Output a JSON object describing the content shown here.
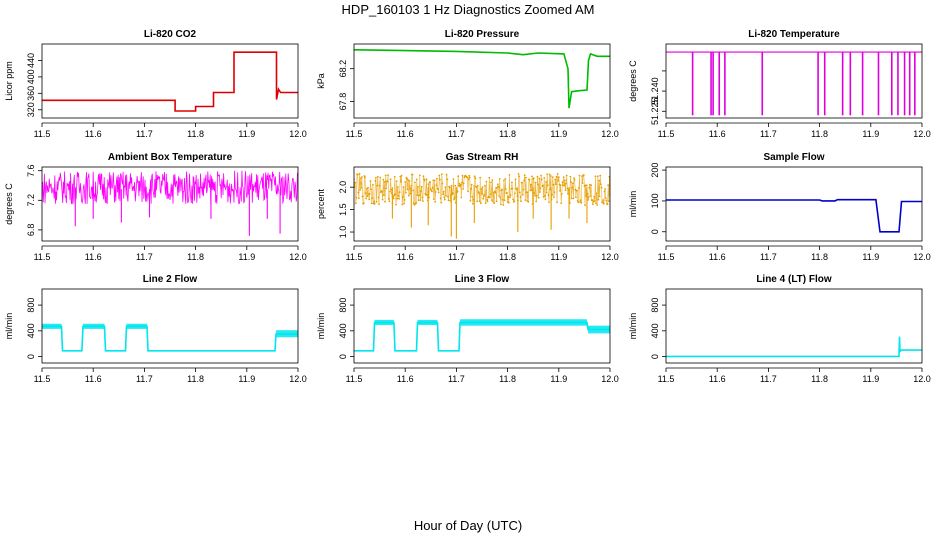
{
  "figure": {
    "title": "HDP_160103  1 Hz Diagnostics Zoomed AM",
    "xlabel": "Hour of Day (UTC)"
  },
  "chart_data": [
    {
      "type": "line",
      "title": "Li-820 CO2",
      "ylabel": "Licor ppm",
      "color": "#dd0000",
      "xlim": [
        11.5,
        12.0
      ],
      "ylim": [
        300,
        480
      ],
      "yticks": [
        320,
        360,
        400,
        440
      ],
      "ytick_labels": [
        "320",
        "360",
        "400",
        "440"
      ],
      "xticks": [
        11.5,
        11.6,
        11.7,
        11.8,
        11.9,
        12.0
      ],
      "xtick_labels": [
        "11.5",
        "11.6",
        "11.7",
        "11.8",
        "11.9",
        "12.0"
      ],
      "x": [
        11.5,
        11.76,
        11.76,
        11.8,
        11.8,
        11.835,
        11.835,
        11.875,
        11.875,
        11.958,
        11.958,
        11.962,
        11.966,
        12.0
      ],
      "y": [
        343,
        343,
        317,
        317,
        328,
        328,
        362,
        362,
        460,
        460,
        345,
        370,
        362,
        362
      ]
    },
    {
      "type": "line",
      "title": "Li-820 Pressure",
      "ylabel": "kPa",
      "color": "#00bb00",
      "xlim": [
        11.5,
        12.0
      ],
      "ylim": [
        67.6,
        68.5
      ],
      "yticks": [
        67.8,
        68.2
      ],
      "ytick_labels": [
        "67.8",
        "68.2"
      ],
      "xticks": [
        11.5,
        11.6,
        11.7,
        11.8,
        11.9,
        12.0
      ],
      "xtick_labels": [
        "11.5",
        "11.6",
        "11.7",
        "11.8",
        "11.9",
        "12.0"
      ],
      "x": [
        11.5,
        11.6,
        11.7,
        11.8,
        11.83,
        11.86,
        11.91,
        11.918,
        11.92,
        11.925,
        11.935,
        11.955,
        11.958,
        11.962,
        11.975,
        12.0
      ],
      "y": [
        68.43,
        68.42,
        68.41,
        68.39,
        68.37,
        68.39,
        68.38,
        68.2,
        67.72,
        67.92,
        67.93,
        67.94,
        68.3,
        68.38,
        68.35,
        68.35
      ]
    },
    {
      "type": "line",
      "title": "Li-820 Temperature",
      "ylabel": "degrees C",
      "color": "#dd00dd",
      "xlim": [
        11.5,
        12.0
      ],
      "ylim": [
        51.22,
        51.275
      ],
      "yticks": [
        51.225,
        51.24,
        51.255
      ],
      "ytick_labels": [
        "51.225",
        "51.240",
        ""
      ],
      "xticks": [
        11.5,
        11.6,
        11.7,
        11.8,
        11.9,
        12.0
      ],
      "xtick_labels": [
        "11.5",
        "11.6",
        "11.7",
        "11.8",
        "11.9",
        "12.0"
      ],
      "baseline": 51.269,
      "dips": [
        11.552,
        11.588,
        11.592,
        11.604,
        11.615,
        11.688,
        11.797,
        11.81,
        11.845,
        11.86,
        11.884,
        11.915,
        11.941,
        11.953,
        11.966,
        11.976,
        11.986
      ],
      "dip_value": 51.222
    },
    {
      "type": "line",
      "title": "Ambient Box Temperature",
      "ylabel": "degrees C",
      "color": "#ff00ff",
      "xlim": [
        11.5,
        12.0
      ],
      "ylim": [
        6.65,
        7.65
      ],
      "yticks": [
        6.8,
        7.2,
        7.6
      ],
      "ytick_labels": [
        "6.8",
        "7.2",
        "7.6"
      ],
      "xticks": [
        11.5,
        11.6,
        11.7,
        11.8,
        11.9,
        12.0
      ],
      "xtick_labels": [
        "11.5",
        "11.6",
        "11.7",
        "11.8",
        "11.9",
        "12.0"
      ],
      "noise_center": 7.35,
      "noise_min": 7.15,
      "noise_max": 7.6,
      "spikes": [
        {
          "x": 11.565,
          "y": 6.85
        },
        {
          "x": 11.6,
          "y": 6.95
        },
        {
          "x": 11.655,
          "y": 6.9
        },
        {
          "x": 11.71,
          "y": 6.97
        },
        {
          "x": 11.83,
          "y": 6.95
        },
        {
          "x": 11.905,
          "y": 6.72
        },
        {
          "x": 11.965,
          "y": 6.75
        },
        {
          "x": 11.94,
          "y": 6.95
        }
      ]
    },
    {
      "type": "scatter",
      "title": "Gas Stream RH",
      "ylabel": "percent",
      "color": "#e69f00",
      "xlim": [
        11.5,
        12.0
      ],
      "ylim": [
        0.8,
        2.45
      ],
      "yticks": [
        1.0,
        1.5,
        2.0
      ],
      "ytick_labels": [
        "1.0",
        "1.5",
        "2.0"
      ],
      "xticks": [
        11.5,
        11.6,
        11.7,
        11.8,
        11.9,
        12.0
      ],
      "xtick_labels": [
        "11.5",
        "11.6",
        "11.7",
        "11.8",
        "11.9",
        "12.0"
      ],
      "noise_center": 2.0,
      "noise_min": 1.6,
      "noise_max": 2.3,
      "spikes": [
        {
          "x": 11.575,
          "y": 1.3
        },
        {
          "x": 11.612,
          "y": 1.1
        },
        {
          "x": 11.645,
          "y": 1.15
        },
        {
          "x": 11.69,
          "y": 0.9
        },
        {
          "x": 11.7,
          "y": 0.85
        },
        {
          "x": 11.735,
          "y": 1.2
        },
        {
          "x": 11.82,
          "y": 1.0
        },
        {
          "x": 11.85,
          "y": 1.3
        },
        {
          "x": 11.885,
          "y": 1.05
        },
        {
          "x": 11.92,
          "y": 1.3
        },
        {
          "x": 11.955,
          "y": 1.2
        }
      ]
    },
    {
      "type": "line",
      "title": "Sample Flow",
      "ylabel": "ml/min",
      "color": "#0000cc",
      "xlim": [
        11.5,
        12.0
      ],
      "ylim": [
        -30,
        210
      ],
      "yticks": [
        0,
        100,
        200
      ],
      "ytick_labels": [
        "0",
        "100",
        "200"
      ],
      "xticks": [
        11.5,
        11.6,
        11.7,
        11.8,
        11.9,
        12.0
      ],
      "xtick_labels": [
        "11.5",
        "11.6",
        "11.7",
        "11.8",
        "11.9",
        "12.0"
      ],
      "x": [
        11.5,
        11.8,
        11.805,
        11.83,
        11.835,
        11.91,
        11.918,
        11.955,
        11.96,
        12.0
      ],
      "y": [
        103,
        103,
        100,
        100,
        104,
        104,
        0,
        0,
        98,
        98
      ]
    },
    {
      "type": "line",
      "title": "Line 2 Flow",
      "ylabel": "ml/min",
      "color": "#00e5ee",
      "xlim": [
        11.5,
        12.0
      ],
      "ylim": [
        -100,
        1050
      ],
      "yticks": [
        0,
        400,
        800
      ],
      "ytick_labels": [
        "0",
        "400",
        "800"
      ],
      "xticks": [
        11.5,
        11.6,
        11.7,
        11.8,
        11.9,
        12.0
      ],
      "xtick_labels": [
        "11.5",
        "11.6",
        "11.7",
        "11.8",
        "11.9",
        "12.0"
      ],
      "x": [
        11.5,
        11.538,
        11.54,
        11.578,
        11.58,
        11.622,
        11.624,
        11.663,
        11.665,
        11.705,
        11.707,
        11.955,
        11.957,
        12.0
      ],
      "y": [
        470,
        470,
        90,
        90,
        470,
        470,
        90,
        90,
        470,
        470,
        90,
        90,
        350,
        350
      ],
      "band": [
        {
          "x0": 11.5,
          "x1": 11.538,
          "lo": 430,
          "hi": 510
        },
        {
          "x0": 11.58,
          "x1": 11.622,
          "lo": 430,
          "hi": 510
        },
        {
          "x0": 11.665,
          "x1": 11.705,
          "lo": 430,
          "hi": 510
        },
        {
          "x0": 11.957,
          "x1": 12.0,
          "lo": 300,
          "hi": 410
        }
      ]
    },
    {
      "type": "line",
      "title": "Line 3 Flow",
      "ylabel": "ml/min",
      "color": "#00e5ee",
      "xlim": [
        11.5,
        12.0
      ],
      "ylim": [
        -100,
        1050
      ],
      "yticks": [
        0,
        400,
        800
      ],
      "ytick_labels": [
        "0",
        "400",
        "800"
      ],
      "xticks": [
        11.5,
        11.6,
        11.7,
        11.8,
        11.9,
        12.0
      ],
      "xtick_labels": [
        "11.5",
        "11.6",
        "11.7",
        "11.8",
        "11.9",
        "12.0"
      ],
      "x": [
        11.5,
        11.538,
        11.54,
        11.578,
        11.58,
        11.622,
        11.624,
        11.663,
        11.665,
        11.705,
        11.707,
        11.955,
        11.957,
        12.0
      ],
      "y": [
        90,
        90,
        530,
        530,
        90,
        90,
        530,
        530,
        90,
        90,
        530,
        530,
        420,
        420
      ],
      "band": [
        {
          "x0": 11.54,
          "x1": 11.578,
          "lo": 490,
          "hi": 570
        },
        {
          "x0": 11.624,
          "x1": 11.663,
          "lo": 490,
          "hi": 570
        },
        {
          "x0": 11.707,
          "x1": 11.955,
          "lo": 480,
          "hi": 580
        },
        {
          "x0": 11.957,
          "x1": 12.0,
          "lo": 360,
          "hi": 480
        }
      ]
    },
    {
      "type": "line",
      "title": "Line 4 (LT) Flow",
      "ylabel": "ml/min",
      "color": "#00e5ee",
      "xlim": [
        11.5,
        12.0
      ],
      "ylim": [
        -100,
        1050
      ],
      "yticks": [
        0,
        400,
        800
      ],
      "ytick_labels": [
        "0",
        "400",
        "800"
      ],
      "xticks": [
        11.5,
        11.6,
        11.7,
        11.8,
        11.9,
        12.0
      ],
      "xtick_labels": [
        "11.5",
        "11.6",
        "11.7",
        "11.8",
        "11.9",
        "12.0"
      ],
      "x": [
        11.5,
        11.955,
        11.956,
        11.957,
        11.96,
        12.0
      ],
      "y": [
        2,
        2,
        310,
        80,
        100,
        100
      ]
    }
  ]
}
